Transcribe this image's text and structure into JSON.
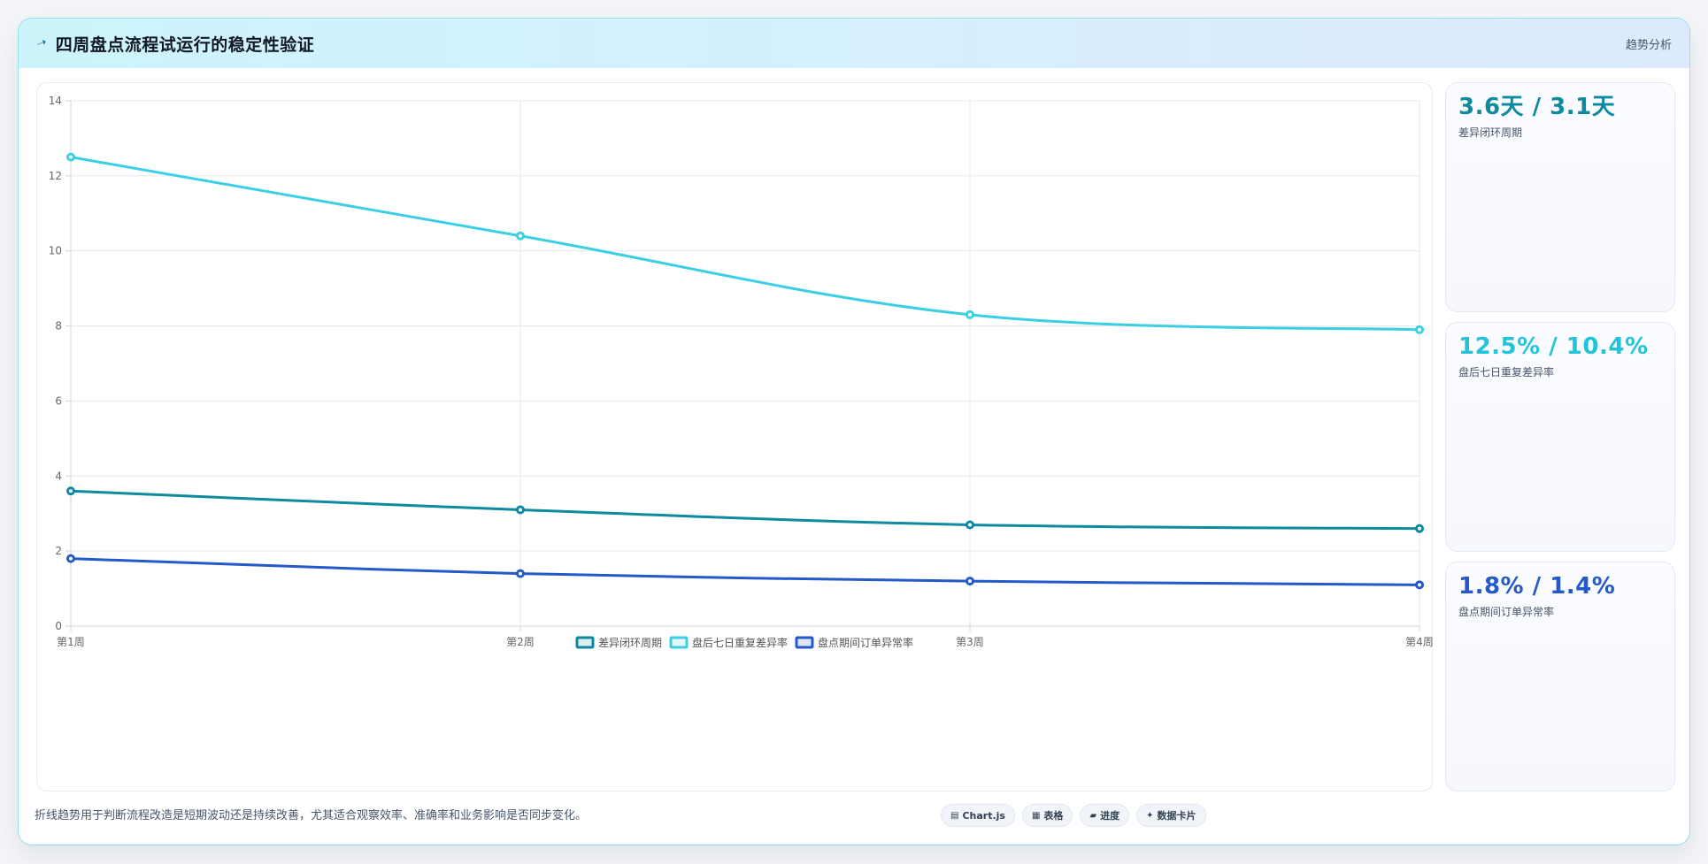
{
  "header": {
    "title": "四周盘点流程试运行的稳定性验证",
    "tag": "趋势分析",
    "icon": "pin-icon"
  },
  "kpis": [
    {
      "value": "3.6天 / 3.1天",
      "label": "差异闭环周期",
      "color": "#0e8aa0"
    },
    {
      "value": "12.5% / 10.4%",
      "label": "盘后七日重复差异率",
      "color": "#22c4dc"
    },
    {
      "value": "1.8% / 1.4%",
      "label": "盘点期间订单异常率",
      "color": "#2459c9"
    }
  ],
  "footer": {
    "note": "折线趋势用于判断流程改造是短期波动还是持续改善，尤其适合观察效率、准确率和业务影响是否同步变化。",
    "chips": [
      {
        "icon": "chart-icon",
        "glyph": "▤",
        "label": "Chart.js"
      },
      {
        "icon": "table-icon",
        "glyph": "▦",
        "label": "表格"
      },
      {
        "icon": "progress-icon",
        "glyph": "▰",
        "label": "进度"
      },
      {
        "icon": "card-icon",
        "glyph": "✦",
        "label": "数据卡片"
      }
    ]
  },
  "chart_data": {
    "type": "line",
    "categories": [
      "第1周",
      "第2周",
      "第3周",
      "第4周"
    ],
    "ylim": [
      0,
      14
    ],
    "yticks": [
      0,
      2,
      4,
      6,
      8,
      10,
      12,
      14
    ],
    "grid": true,
    "legend_position": "bottom",
    "series": [
      {
        "name": "差异闭环周期",
        "values": [
          3.6,
          3.1,
          2.7,
          2.6
        ],
        "color": "#0e8aa0"
      },
      {
        "name": "盘后七日重复差异率",
        "values": [
          12.5,
          10.4,
          8.3,
          7.9
        ],
        "color": "#3ccfe3"
      },
      {
        "name": "盘点期间订单异常率",
        "values": [
          1.8,
          1.4,
          1.2,
          1.1
        ],
        "color": "#2459c9"
      }
    ]
  }
}
